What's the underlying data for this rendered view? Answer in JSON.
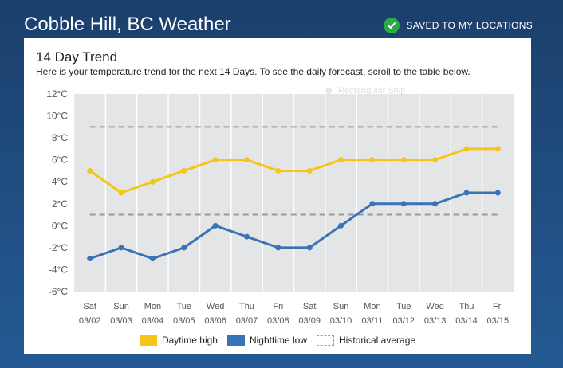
{
  "header": {
    "city_title": "Cobble Hill, BC Weather",
    "saved_label": "SAVED TO MY LOCATIONS"
  },
  "card": {
    "title": "14 Day Trend",
    "description": "Here is your temperature trend for the next 14 Days. To see the daily forecast, scroll to the table below."
  },
  "overlay": {
    "snip_text": "Rectangular Snip"
  },
  "legend": {
    "items": [
      {
        "label": "Daytime high",
        "color": "#f5c518"
      },
      {
        "label": "Nighttime low",
        "color": "#3a73b5"
      },
      {
        "label": "Historical average",
        "color": "#999999"
      }
    ]
  },
  "chart_data": {
    "type": "line",
    "title": "14 Day Trend",
    "categories": [
      {
        "day": "Sat",
        "date": "03/02"
      },
      {
        "day": "Sun",
        "date": "03/03"
      },
      {
        "day": "Mon",
        "date": "03/04"
      },
      {
        "day": "Tue",
        "date": "03/05"
      },
      {
        "day": "Wed",
        "date": "03/06"
      },
      {
        "day": "Thu",
        "date": "03/07"
      },
      {
        "day": "Fri",
        "date": "03/08"
      },
      {
        "day": "Sat",
        "date": "03/09"
      },
      {
        "day": "Sun",
        "date": "03/10"
      },
      {
        "day": "Mon",
        "date": "03/11"
      },
      {
        "day": "Tue",
        "date": "03/12"
      },
      {
        "day": "Wed",
        "date": "03/13"
      },
      {
        "day": "Thu",
        "date": "03/14"
      },
      {
        "day": "Fri",
        "date": "03/15"
      }
    ],
    "series": [
      {
        "name": "Daytime high",
        "color": "#f5c518",
        "values": [
          5,
          3,
          4,
          5,
          6,
          6,
          5,
          5,
          6,
          6,
          6,
          6,
          7,
          7
        ]
      },
      {
        "name": "Nighttime low",
        "color": "#3a73b5",
        "values": [
          -3,
          -2,
          -3,
          -2,
          0,
          -1,
          -2,
          -2,
          0,
          2,
          2,
          2,
          3,
          3
        ]
      }
    ],
    "historical_average": {
      "name": "Historical average",
      "high": 9,
      "low": 1
    },
    "y_ticks": [
      "12°C",
      "10°C",
      "8°C",
      "6°C",
      "4°C",
      "2°C",
      "0°C",
      "-2°C",
      "-4°C",
      "-6°C"
    ],
    "ylim": [
      -6,
      12
    ],
    "grid": true,
    "legend_position": "bottom"
  }
}
